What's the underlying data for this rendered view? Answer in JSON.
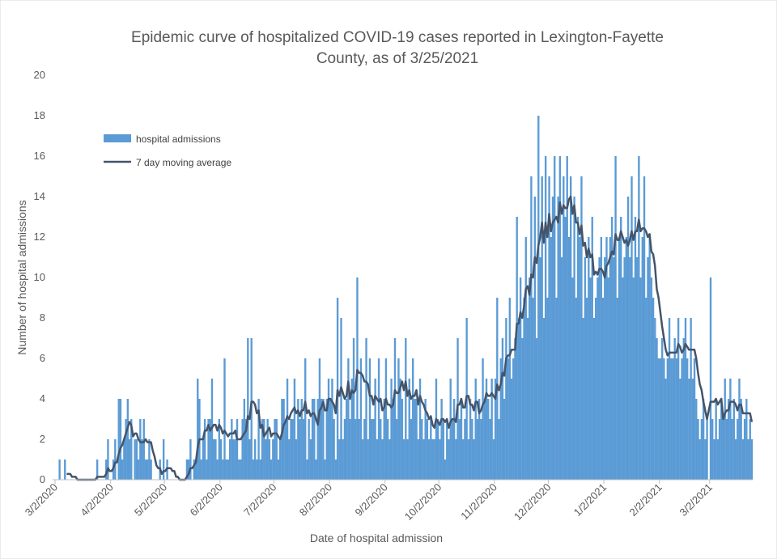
{
  "chart_data": {
    "type": "bar",
    "title_line1": "Epidemic curve of hospitalized COVID-19 cases reported in Lexington-Fayette",
    "title_line2": "County, as of 3/25/2021",
    "xlabel": "Date of hospital admission",
    "ylabel": "Number of hospital admissions",
    "ylim": [
      0,
      20
    ],
    "yticks": [
      0,
      2,
      4,
      6,
      8,
      10,
      12,
      14,
      16,
      18,
      20
    ],
    "xlim": [
      "2020-03-02",
      "2021-03-25"
    ],
    "xticks": [
      "3/2/2020",
      "4/2/2020",
      "5/2/2020",
      "6/2/2020",
      "7/2/2020",
      "8/2/2020",
      "9/2/2020",
      "10/2/2020",
      "11/2/2020",
      "12/2/2020",
      "1/2/2021",
      "2/2/2021",
      "3/2/2021"
    ],
    "grid": false,
    "legend": {
      "placement": "top-left"
    },
    "colors": {
      "bars": "#5b9bd5",
      "line": "#44546a"
    },
    "series": [
      {
        "name": "hospital admissions",
        "type": "bar",
        "note": "daily counts; values estimated from the figure",
        "monthly_values": [
          {
            "start": "2020-03-02",
            "values": [
              0,
              0,
              1,
              0,
              0,
              1,
              0,
              0,
              0,
              0,
              0,
              0,
              0,
              0,
              0,
              0,
              0,
              0,
              0,
              0,
              0,
              0,
              0,
              1,
              0,
              0,
              0,
              0,
              1,
              2,
              0
            ]
          },
          {
            "start": "2020-04-02",
            "values": [
              0,
              1,
              2,
              0,
              4,
              4,
              1,
              2,
              3,
              4,
              2,
              3,
              0,
              2,
              2,
              1,
              3,
              2,
              3,
              1,
              1,
              2,
              1,
              0,
              0,
              0,
              0,
              1,
              0,
              2
            ]
          },
          {
            "start": "2020-05-02",
            "values": [
              0,
              1,
              0,
              0,
              0,
              0,
              0,
              0,
              0,
              0,
              0,
              0,
              1,
              1,
              2,
              0,
              1,
              1,
              5,
              4,
              1,
              2,
              3,
              1,
              3,
              3,
              5,
              2,
              2,
              1,
              3
            ]
          },
          {
            "start": "2020-06-02",
            "values": [
              2,
              1,
              6,
              1,
              1,
              2,
              3,
              2,
              2,
              3,
              1,
              1,
              3,
              4,
              3,
              7,
              2,
              7,
              1,
              2,
              1,
              4,
              1,
              3,
              3,
              2,
              3,
              2,
              1,
              2
            ]
          },
          {
            "start": "2020-07-02",
            "values": [
              3,
              3,
              1,
              2,
              4,
              4,
              3,
              5,
              2,
              3,
              3,
              5,
              2,
              4,
              3,
              4,
              3,
              6,
              1,
              3,
              2,
              4,
              4,
              1,
              4,
              6,
              4,
              4,
              1,
              4,
              5
            ]
          },
          {
            "start": "2020-08-02",
            "values": [
              4,
              5,
              3,
              1,
              9,
              2,
              8,
              2,
              3,
              4,
              6,
              3,
              5,
              7,
              3,
              10,
              3,
              6,
              2,
              3,
              7,
              2,
              6,
              3,
              3,
              5,
              2,
              6,
              3,
              2,
              4
            ]
          },
          {
            "start": "2020-09-02",
            "values": [
              6,
              3,
              2,
              5,
              4,
              7,
              3,
              6,
              5,
              4,
              2,
              7,
              2,
              5,
              3,
              6,
              4,
              4,
              2,
              5,
              3,
              2,
              4,
              3,
              2,
              3,
              2,
              2,
              5,
              3
            ]
          },
          {
            "start": "2020-10-02",
            "values": [
              2,
              4,
              3,
              1,
              3,
              2,
              5,
              3,
              4,
              2,
              7,
              3,
              4,
              2,
              3,
              8,
              2,
              4,
              3,
              2,
              5,
              3,
              4,
              3,
              6,
              4,
              5,
              4,
              3,
              5,
              2
            ]
          },
          {
            "start": "2020-11-02",
            "values": [
              5,
              9,
              3,
              6,
              7,
              4,
              8,
              6,
              9,
              5,
              6,
              7,
              13,
              8,
              10,
              7,
              9,
              12,
              8,
              10,
              15,
              9,
              14,
              7,
              18,
              11,
              15,
              8,
              16,
              9
            ]
          },
          {
            "start": "2020-12-02",
            "values": [
              15,
              12,
              14,
              16,
              9,
              14,
              16,
              11,
              15,
              13,
              16,
              12,
              15,
              10,
              14,
              9,
              13,
              12,
              15,
              8,
              11,
              9,
              12,
              10,
              13,
              8,
              9,
              10,
              11,
              12,
              9
            ]
          },
          {
            "start": "2021-01-02",
            "values": [
              11,
              12,
              10,
              12,
              13,
              11,
              16,
              9,
              12,
              13,
              10,
              11,
              12,
              14,
              11,
              15,
              10,
              13,
              11,
              16,
              10,
              12,
              15,
              9,
              11,
              12,
              10,
              9,
              8,
              7,
              6
            ]
          },
          {
            "start": "2021-02-02",
            "values": [
              6,
              7,
              6,
              5,
              6,
              8,
              6,
              6,
              7,
              6,
              8,
              5,
              6,
              7,
              8,
              6,
              5,
              8,
              5,
              6,
              4,
              3,
              2,
              3,
              4,
              2,
              3
            ]
          },
          {
            "start": "2021-03-02",
            "values": [
              10,
              3,
              2,
              4,
              2,
              3,
              4,
              3,
              5,
              3,
              4,
              5,
              3,
              4,
              2,
              3,
              5,
              4,
              2,
              3,
              4,
              2,
              3,
              2
            ]
          }
        ]
      },
      {
        "name": "7 day moving average",
        "type": "line"
      }
    ]
  }
}
